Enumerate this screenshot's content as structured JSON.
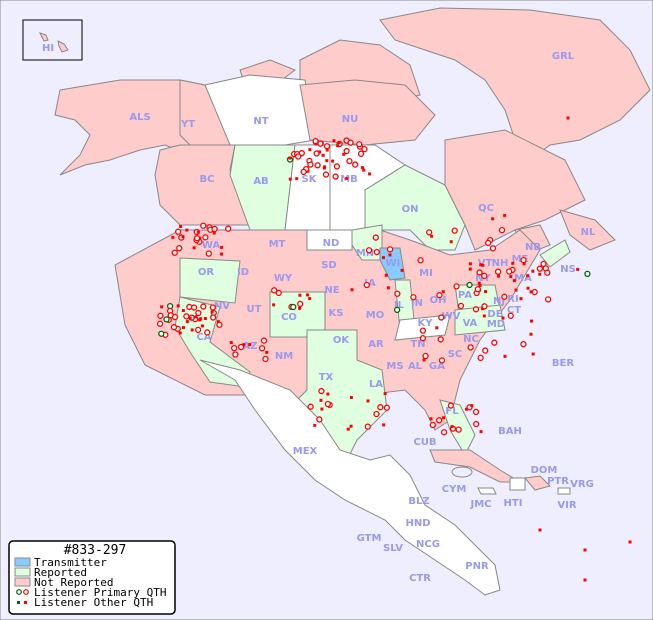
{
  "map": {
    "title": "#833-297",
    "colors": {
      "background": "#eeeeff",
      "transmitter": "#88ccff",
      "reported": "#e0ffe0",
      "not_reported": "#ffcccc",
      "no_data": "#ffffff",
      "label": "#9999ee",
      "listener": "#ff0000",
      "listener_reported": "#006600"
    },
    "legend": {
      "title": "#833-297",
      "transmitter": "Transmitter",
      "reported": "Reported",
      "not_reported": "Not Reported",
      "primary": "Listener Primary QTH",
      "other": "Listener Other QTH"
    },
    "labels": {
      "HI": "HI",
      "GRL": "GRL",
      "ALS": "ALS",
      "YT": "YT",
      "NT": "NT",
      "NU": "NU",
      "BC": "BC",
      "AB": "AB",
      "SK": "SK",
      "MB": "MB",
      "ON": "ON",
      "QC": "QC",
      "NL": "NL",
      "NB": "NB",
      "NS": "NS",
      "WA": "WA",
      "OR": "OR",
      "CA": "CA",
      "ID": "ID",
      "NV": "NV",
      "MT": "MT",
      "WY": "WY",
      "UT": "UT",
      "AZ": "AZ",
      "CO": "CO",
      "NM": "NM",
      "ND": "ND",
      "SD": "SD",
      "NE": "NE",
      "KS": "KS",
      "OK": "OK",
      "TX": "TX",
      "MN": "MN",
      "IA": "IA",
      "MO": "MO",
      "AR": "AR",
      "LA": "LA",
      "WI": "WI",
      "IL": "IL",
      "MI": "MI",
      "IN": "IN",
      "OH": "OH",
      "KY": "KY",
      "TN": "TN",
      "MS": "MS",
      "AL": "AL",
      "GA": "GA",
      "FL": "FL",
      "SC": "SC",
      "NC": "NC",
      "VA": "VA",
      "WV": "WV",
      "PA": "PA",
      "NY": "NY",
      "MD": "MD",
      "DE": "DE",
      "NJ": "NJ",
      "CT": "CT",
      "RI": "RI",
      "MA": "MA",
      "VT": "VT",
      "NH": "NH",
      "ME": "ME",
      "MEX": "MEX",
      "BER": "BER",
      "BAH": "BAH",
      "CUB": "CUB",
      "CYM": "CYM",
      "JMC": "JMC",
      "HTI": "HTI",
      "DOM": "DOM",
      "PTR": "PTR",
      "VRG": "VRG",
      "VIR": "VIR",
      "BLZ": "BLZ",
      "GTM": "GTM",
      "HND": "HND",
      "SLV": "SLV",
      "NCG": "NCG",
      "CTR": "CTR",
      "PNR": "PNR"
    }
  }
}
